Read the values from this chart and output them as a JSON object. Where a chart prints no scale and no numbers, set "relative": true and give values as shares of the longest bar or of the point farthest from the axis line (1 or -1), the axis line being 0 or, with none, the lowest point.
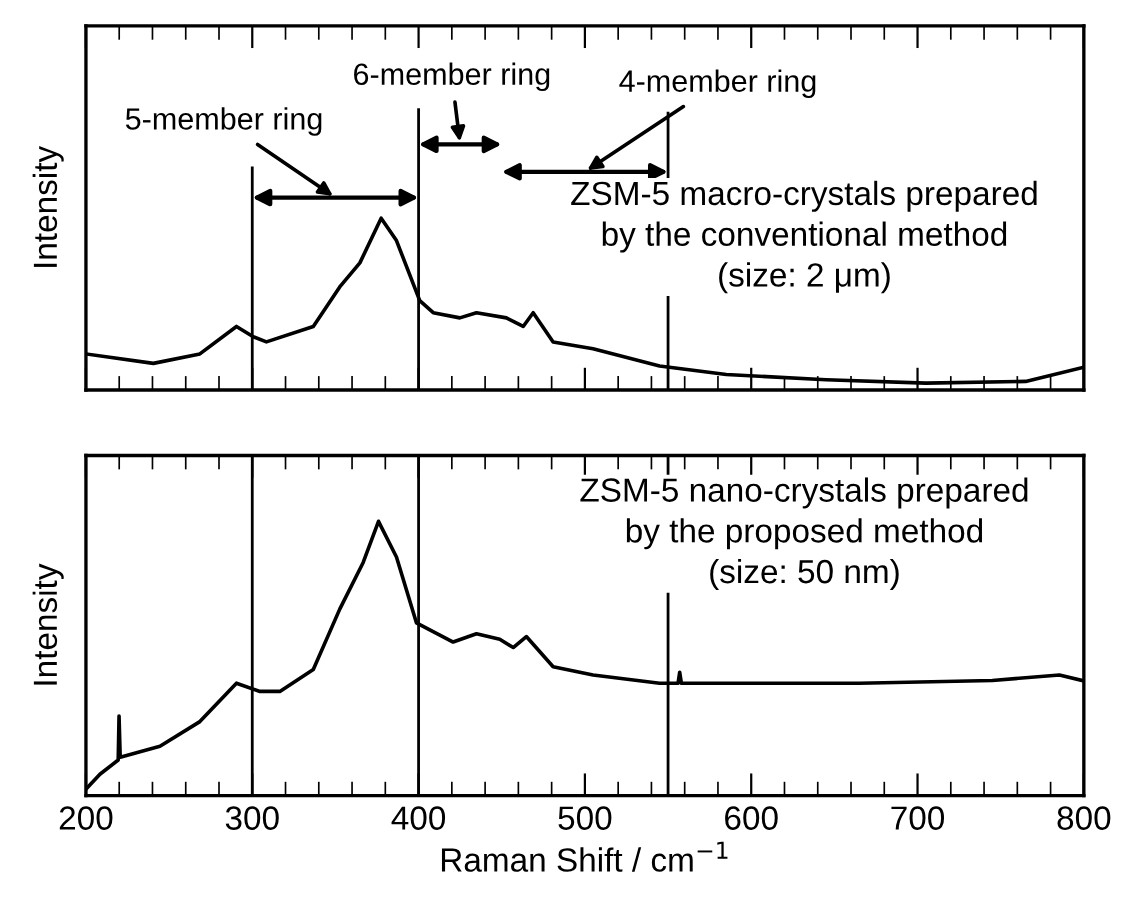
{
  "chart_data": [
    {
      "type": "line",
      "relative": true,
      "ylabel": "Intensity",
      "xlim": [
        200,
        800
      ],
      "xticks": [
        200,
        {
          "value": 220,
          "label": null
        },
        {
          "value": 240,
          "label": null
        },
        {
          "value": 260,
          "label": null
        },
        {
          "value": 280,
          "label": null
        },
        300,
        {
          "value": 320,
          "label": null
        },
        {
          "value": 340,
          "label": null
        },
        {
          "value": 360,
          "label": null
        },
        {
          "value": 380,
          "label": null
        },
        400,
        {
          "value": 420,
          "label": null
        },
        {
          "value": 440,
          "label": null
        },
        {
          "value": 460,
          "label": null
        },
        {
          "value": 480,
          "label": null
        },
        500,
        {
          "value": 520,
          "label": null
        },
        {
          "value": 540,
          "label": null
        },
        {
          "value": 560,
          "label": null
        },
        {
          "value": 580,
          "label": null
        },
        600,
        {
          "value": 620,
          "label": null
        },
        {
          "value": 640,
          "label": null
        },
        {
          "value": 660,
          "label": null
        },
        {
          "value": 680,
          "label": null
        },
        700,
        {
          "value": 720,
          "label": null
        },
        {
          "value": 740,
          "label": null
        },
        {
          "value": 760,
          "label": null
        },
        {
          "value": 780,
          "label": null
        },
        800
      ],
      "tick_labels": false,
      "grid": false,
      "legend": false,
      "marker": "none",
      "line_style": "solid",
      "series": [
        {
          "color": "#000000",
          "x": [
            200,
            240.5,
            268.5,
            290.5,
            300.6,
            308.5,
            336.7,
            352.6,
            364.7,
            377.5,
            386.7,
            400.7,
            408.8,
            424.8,
            434.8,
            452.8,
            462.9,
            468.9,
            480.9,
            504.9,
            544.9,
            585,
            645,
            705,
            765,
            799
          ],
          "values": [
            0.21,
            0.155,
            0.21,
            0.37,
            0.31,
            0.28,
            0.37,
            0.6,
            0.74,
            1.0,
            0.87,
            0.52,
            0.45,
            0.42,
            0.45,
            0.42,
            0.37,
            0.45,
            0.28,
            0.24,
            0.14,
            0.09,
            0.06,
            0.04,
            0.05,
            0.13
          ]
        }
      ],
      "ref_lines": [
        {
          "axis": "x",
          "value": 300
        },
        {
          "axis": "x",
          "value": 400
        },
        {
          "axis": "x",
          "value": 550
        }
      ],
      "annotations": [
        "5-member ring",
        "6-member ring",
        "4-member ring",
        "ZSM-5 macro-crystals prepared\nby the conventional method\n(size: 2 μm)"
      ]
    },
    {
      "type": "line",
      "relative": true,
      "ylabel": "Intensity",
      "xlabel": "Raman Shift / cm$^{−1}$",
      "xlim": [
        200,
        800
      ],
      "xticks": [
        200,
        {
          "value": 220,
          "label": null
        },
        {
          "value": 240,
          "label": null
        },
        {
          "value": 260,
          "label": null
        },
        {
          "value": 280,
          "label": null
        },
        300,
        {
          "value": 320,
          "label": null
        },
        {
          "value": 340,
          "label": null
        },
        {
          "value": 360,
          "label": null
        },
        {
          "value": 380,
          "label": null
        },
        400,
        {
          "value": 420,
          "label": null
        },
        {
          "value": 440,
          "label": null
        },
        {
          "value": 460,
          "label": null
        },
        {
          "value": 480,
          "label": null
        },
        500,
        {
          "value": 520,
          "label": null
        },
        {
          "value": 540,
          "label": null
        },
        {
          "value": 560,
          "label": null
        },
        {
          "value": 580,
          "label": null
        },
        600,
        {
          "value": 620,
          "label": null
        },
        {
          "value": 640,
          "label": null
        },
        {
          "value": 660,
          "label": null
        },
        {
          "value": 680,
          "label": null
        },
        700,
        {
          "value": 720,
          "label": null
        },
        {
          "value": 740,
          "label": null
        },
        {
          "value": 760,
          "label": null
        },
        {
          "value": 780,
          "label": null
        },
        800
      ],
      "tick_labels": "x",
      "grid": false,
      "legend": false,
      "marker": "none",
      "line_style": "solid",
      "series": [
        {
          "color": "#000000",
          "x": [
            200,
            208.4,
            219.4,
            219.9,
            220.6,
            244.5,
            268.5,
            290.5,
            304.6,
            316.6,
            336.7,
            352.6,
            366.7,
            375.9,
            386.7,
            398.7,
            420.8,
            434.8,
            448.8,
            456.9,
            464.8,
            480.9,
            504.9,
            544.9,
            556,
            557,
            558,
            585,
            665,
            745,
            785.3,
            799
          ],
          "values": [
            0.024,
            0.078,
            0.13,
            0.29,
            0.14,
            0.18,
            0.27,
            0.41,
            0.38,
            0.38,
            0.46,
            0.68,
            0.85,
            1.0,
            0.87,
            0.63,
            0.56,
            0.59,
            0.57,
            0.54,
            0.58,
            0.47,
            0.44,
            0.41,
            0.41,
            0.45,
            0.41,
            0.41,
            0.41,
            0.42,
            0.44,
            0.42
          ]
        }
      ],
      "ref_lines": [
        {
          "axis": "x",
          "value": 300
        },
        {
          "axis": "x",
          "value": 400
        },
        {
          "axis": "x",
          "value": 550
        }
      ],
      "annotations": [
        "ZSM-5 nano-crystals prepared\nby the proposed method\n(size: 50 nm)"
      ]
    }
  ]
}
